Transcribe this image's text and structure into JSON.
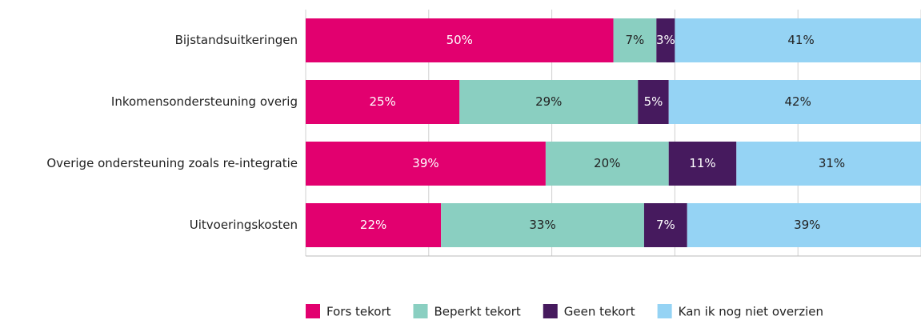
{
  "chart_data": {
    "type": "stacked_bar_horizontal",
    "categories": [
      "Bijstandsuitkeringen",
      "Inkomensondersteuning overig",
      "Overige ondersteuning zoals re-integratie",
      "Uitvoeringskosten"
    ],
    "series": [
      {
        "name": "Fors tekort",
        "color": "#e2006f",
        "values": [
          50,
          25,
          39,
          22
        ],
        "value_labels": [
          "50%",
          "25%",
          "39%",
          "22%"
        ]
      },
      {
        "name": "Beperkt tekort",
        "color": "#8acfc1",
        "values": [
          7,
          29,
          20,
          33
        ],
        "value_labels": [
          "7%",
          "29%",
          "20%",
          "33%"
        ]
      },
      {
        "name": "Geen tekort",
        "color": "#461a5e",
        "values": [
          3,
          5,
          11,
          7
        ],
        "value_labels": [
          "3%",
          "5%",
          "11%",
          "7%"
        ]
      },
      {
        "name": "Kan ik nog niet overzien",
        "color": "#95d3f4",
        "values": [
          41,
          42,
          31,
          39
        ],
        "value_labels": [
          "41%",
          "42%",
          "31%",
          "39%"
        ]
      }
    ],
    "xlim": [
      0,
      100
    ],
    "xticks": [
      0,
      20,
      40,
      60,
      80,
      100
    ],
    "grid": true,
    "legend": "bottom"
  }
}
